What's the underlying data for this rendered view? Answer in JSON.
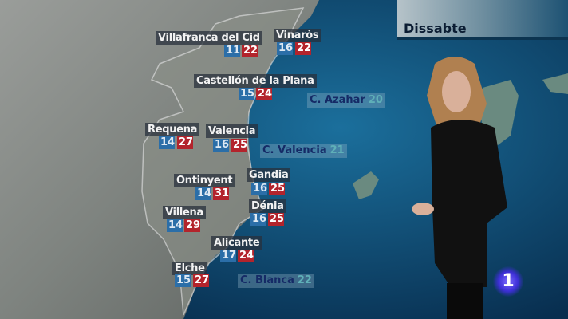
{
  "header": {
    "day": "Dissabte"
  },
  "cities": [
    {
      "name": "Villafranca del Cid",
      "min": "11",
      "max": "22"
    },
    {
      "name": "Vinaròs",
      "min": "16",
      "max": "22"
    },
    {
      "name": "Castellón de la Plana",
      "min": "15",
      "max": "24"
    },
    {
      "name": "Requena",
      "min": "14",
      "max": "27"
    },
    {
      "name": "Valencia",
      "min": "16",
      "max": "25"
    },
    {
      "name": "Ontinyent",
      "min": "14",
      "max": "31"
    },
    {
      "name": "Gandia",
      "min": "16",
      "max": "25"
    },
    {
      "name": "Villena",
      "min": "14",
      "max": "29"
    },
    {
      "name": "Dénia",
      "min": "16",
      "max": "25"
    },
    {
      "name": "Alicante",
      "min": "17",
      "max": "24"
    },
    {
      "name": "Elche",
      "min": "15",
      "max": "27"
    }
  ],
  "sea": [
    {
      "name": "C. Azahar",
      "temp": "20"
    },
    {
      "name": "C. Valencia",
      "temp": "21"
    },
    {
      "name": "C. Blanca",
      "temp": "22"
    }
  ],
  "logo": "1",
  "colors": {
    "min": "#2b6ea8",
    "max": "#b3242c",
    "sea": "#0b3a5e",
    "land": "#8a8f8c"
  }
}
